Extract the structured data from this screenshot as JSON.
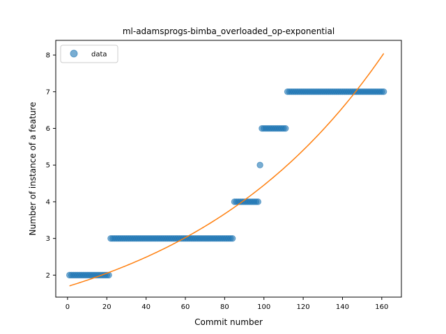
{
  "chart_data": {
    "type": "scatter",
    "title": "ml-adamsprogs-bimba_overloaded_op-exponential",
    "xlabel": "Commit number",
    "ylabel": "Number of instance of a feature",
    "xlim": [
      -6,
      170
    ],
    "ylim": [
      1.4,
      8.4
    ],
    "xticks": [
      0,
      20,
      40,
      60,
      80,
      100,
      120,
      140,
      160
    ],
    "yticks": [
      2,
      3,
      4,
      5,
      6,
      7,
      8
    ],
    "grid": false,
    "legend": {
      "placement": "upper-left",
      "entries": [
        {
          "label": "data",
          "marker": "circle"
        }
      ]
    },
    "series": [
      {
        "name": "data",
        "kind": "scatter",
        "color": "#1f77b4",
        "segments": [
          {
            "x_from": 1,
            "x_to": 21,
            "y": 2
          },
          {
            "x_from": 22,
            "x_to": 84,
            "y": 3
          },
          {
            "x_from": 85,
            "x_to": 97,
            "y": 4
          },
          {
            "x_from": 98,
            "x_to": 98,
            "y": 5
          },
          {
            "x_from": 99,
            "x_to": 111,
            "y": 6
          },
          {
            "x_from": 112,
            "x_to": 161,
            "y": 7
          }
        ]
      },
      {
        "kind": "line",
        "color": "#ff7f0e",
        "fit": {
          "model": "exponential",
          "a": 1.69,
          "b": 0.00969,
          "x_from": 1,
          "x_to": 161
        }
      }
    ]
  }
}
